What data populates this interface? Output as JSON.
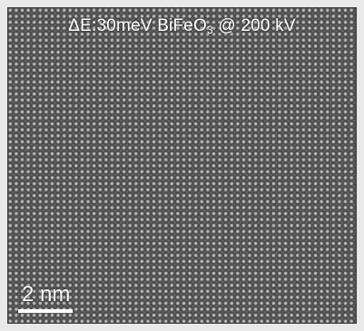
{
  "image": {
    "title_prefix": "ΔE:30meV BiFeO",
    "title_subscript": "3",
    "title_suffix": " @ 200 kV",
    "scale_bar_label": "2  nm",
    "colors": {
      "background": "#e9e9e9",
      "lattice_dark": "#4c4c4c",
      "text": "#ffffff"
    }
  }
}
